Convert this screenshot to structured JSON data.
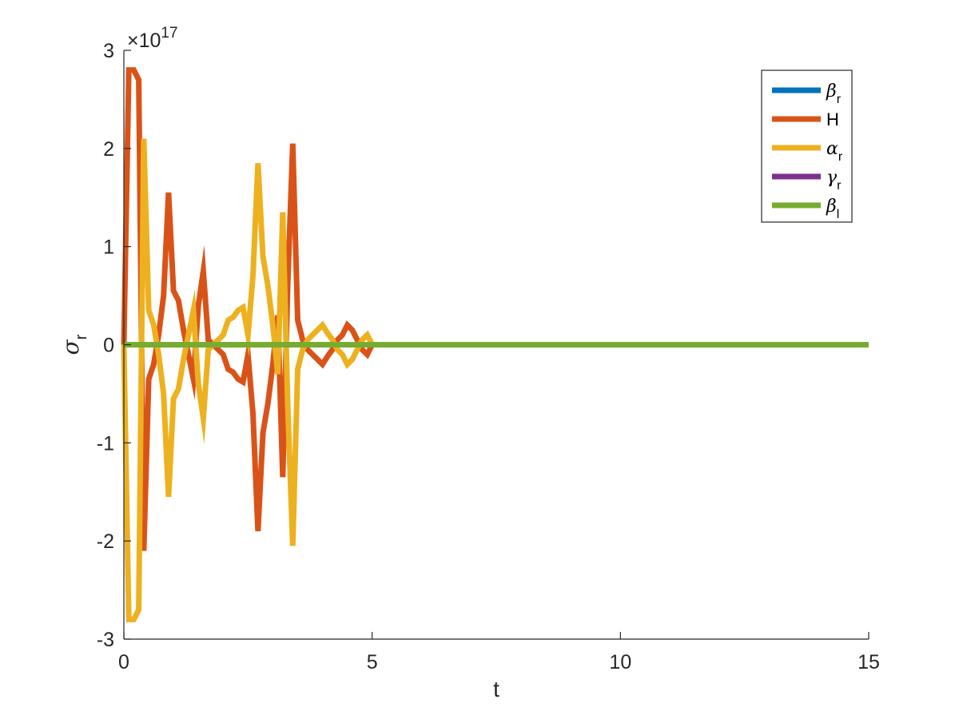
{
  "chart_data": {
    "type": "line",
    "title": "",
    "xlabel": "t",
    "ylabel": {
      "symbol": "σ",
      "subscript": "r"
    },
    "xlim": [
      0,
      15
    ],
    "ylim": [
      -3,
      3
    ],
    "x_ticks": [
      0,
      5,
      10,
      15
    ],
    "x_tick_labels": [
      "0",
      "5",
      "10",
      "15"
    ],
    "y_ticks": [
      -3,
      -2,
      -1,
      0,
      1,
      2,
      3
    ],
    "y_tick_labels": [
      "-3",
      "-2",
      "-1",
      "0",
      "1",
      "2",
      "3"
    ],
    "y_exponent": {
      "prefix": "×10",
      "power": "17"
    },
    "grid": false,
    "legend_position": "top-right",
    "series": [
      {
        "name": "β",
        "name_subscript": "r",
        "color": "#0072BD",
        "x": [
          0,
          15
        ],
        "y": [
          0,
          0
        ]
      },
      {
        "name": "H",
        "name_subscript": "",
        "color": "#D95319",
        "x": [
          0,
          0.1,
          0.2,
          0.3,
          0.4,
          0.5,
          0.6,
          0.7,
          0.8,
          0.9,
          1.0,
          1.1,
          1.2,
          1.3,
          1.4,
          1.5,
          1.6,
          1.7,
          1.8,
          1.9,
          2.0,
          2.1,
          2.2,
          2.3,
          2.4,
          2.5,
          2.6,
          2.7,
          2.8,
          2.9,
          3.0,
          3.1,
          3.2,
          3.3,
          3.4,
          3.5,
          3.6,
          3.7,
          3.8,
          3.9,
          4.0,
          4.1,
          4.2,
          4.3,
          4.4,
          4.5,
          4.6,
          4.7,
          4.8,
          4.9,
          5.0
        ],
        "y": [
          0,
          2.8,
          2.8,
          2.7,
          -2.1,
          -0.35,
          -0.2,
          0.1,
          0.5,
          1.55,
          0.55,
          0.45,
          0.15,
          -0.1,
          -0.35,
          0.4,
          0.75,
          0.05,
          0.0,
          -0.05,
          -0.1,
          -0.25,
          -0.28,
          -0.35,
          -0.38,
          -0.1,
          -0.7,
          -1.9,
          -0.9,
          -0.6,
          -0.2,
          0.3,
          -1.35,
          0.6,
          2.05,
          0.25,
          0.05,
          -0.05,
          -0.1,
          -0.15,
          -0.2,
          -0.12,
          -0.05,
          0.05,
          0.1,
          0.2,
          0.15,
          0.05,
          -0.05,
          -0.1,
          0.0
        ]
      },
      {
        "name": "α",
        "name_subscript": "r",
        "color": "#EDB120",
        "x": [
          0,
          0.1,
          0.2,
          0.3,
          0.4,
          0.5,
          0.6,
          0.7,
          0.8,
          0.9,
          1.0,
          1.1,
          1.2,
          1.3,
          1.4,
          1.5,
          1.6,
          1.7,
          1.8,
          1.9,
          2.0,
          2.1,
          2.2,
          2.3,
          2.4,
          2.5,
          2.6,
          2.7,
          2.8,
          2.9,
          3.0,
          3.1,
          3.2,
          3.3,
          3.4,
          3.5,
          3.6,
          3.7,
          3.8,
          3.9,
          4.0,
          4.1,
          4.2,
          4.3,
          4.4,
          4.5,
          4.6,
          4.7,
          4.8,
          4.9,
          5.0
        ],
        "y": [
          0,
          -2.8,
          -2.8,
          -2.7,
          2.1,
          0.35,
          0.2,
          -0.1,
          -0.5,
          -1.55,
          -0.55,
          -0.45,
          -0.15,
          0.1,
          0.35,
          -0.4,
          -0.75,
          -0.05,
          0.0,
          0.05,
          0.1,
          0.25,
          0.28,
          0.35,
          0.38,
          0.1,
          0.7,
          1.85,
          0.9,
          0.6,
          0.2,
          -0.3,
          1.35,
          -0.6,
          -2.05,
          -0.25,
          -0.05,
          0.05,
          0.1,
          0.15,
          0.2,
          0.12,
          0.05,
          -0.05,
          -0.1,
          -0.2,
          -0.15,
          -0.05,
          0.05,
          0.1,
          0.0
        ]
      },
      {
        "name": "γ",
        "name_subscript": "r",
        "color": "#7E2F8E",
        "x": [
          0,
          15
        ],
        "y": [
          0,
          0
        ]
      },
      {
        "name": "β",
        "name_subscript": "l",
        "color": "#77AC30",
        "x": [
          0,
          15
        ],
        "y": [
          0,
          0
        ]
      }
    ]
  }
}
